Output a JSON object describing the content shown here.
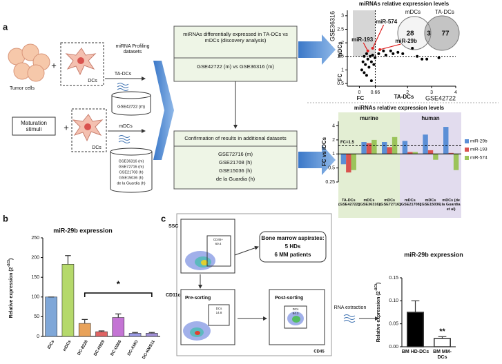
{
  "panel_labels": [
    "a",
    "b",
    "c"
  ],
  "discovery_diagram": {
    "tumor_cells": "Tumor cells",
    "plus_1": "+",
    "dcs_1": "DCs",
    "profiling": "miRNA Profiling datasets",
    "ta_dcs": "TA-DCs",
    "ta_dataset": "GSE42722 (m)",
    "maturation": "Maturation stimuli",
    "plus_2": "+",
    "dcs_2": "DCs",
    "mdcs": "mDCs",
    "m_datasets": [
      "GSE36316 (m)",
      "GSE72716 (m)",
      "GSE21708 (h)",
      "GSE15036 (h)",
      "de la Guardia (h)"
    ],
    "box1": {
      "title": "miRNAs differentially expressed in TA-DCs vs mDCs (discovery analysis)",
      "comparison": "GSE42722 (m) vs GSE36316 (m)"
    },
    "box2": {
      "title": "Confirmation of results in additional datasets",
      "datasets": [
        "GSE72716 (m)",
        "GSE21708 (h)",
        "GSE15036 (h)",
        "de la Guardia (h)"
      ]
    }
  },
  "sorting_diagram": {
    "ssc": "SSC",
    "gate1": "CD45+",
    "gate1_value": "60.4",
    "aspirates": "Bone marrow aspirates:",
    "hds": "5 HDs",
    "patients": "6 MM patients",
    "cd11c": "CD11c",
    "pre": "Pre-sorting",
    "gate2": "DCs",
    "gate2_value": "14.8",
    "post": "Post-sorting",
    "gate3": "DCs",
    "gate3_value": "84.3",
    "rna": "RNA extraction",
    "cd45": "CD45"
  },
  "chart_data": [
    {
      "type": "scatter",
      "title": "miRNAs relative expression levels",
      "x_label": "FC",
      "x_sublabel": "TA-DCs",
      "x_dataset": "GSE42722",
      "y_label": "FC",
      "y_sublabel": "mDCs",
      "y_dataset": "GSE36316",
      "xlim": [
        -0.5,
        4
      ],
      "ylim": [
        0.4,
        3.2
      ],
      "xticks": [
        0,
        0.66,
        2,
        3,
        4
      ],
      "yticks": [
        0.5,
        1,
        1.5,
        2,
        2.5,
        3
      ],
      "x_threshold": 0.66,
      "y_threshold": 1.5,
      "series": [
        {
          "color": "#000000",
          "x": [
            0.1,
            0.15,
            0.2,
            0.25,
            0.3,
            0.3,
            0.35,
            0.4,
            0.45,
            0.5,
            0.5,
            0.55,
            0.6,
            0.2,
            0.65,
            0.8,
            1.0,
            1.1,
            1.3,
            1.4,
            1.6,
            1.8,
            2.2,
            2.4,
            2.6,
            2.8,
            3.3
          ],
          "y": [
            1.0,
            1.3,
            1.5,
            1.2,
            0.8,
            1.6,
            1.4,
            1.1,
            1.5,
            1.3,
            0.6,
            1.55,
            1.2,
            0.9,
            1.45,
            1.6,
            1.7,
            1.55,
            1.7,
            1.6,
            1.65,
            1.6,
            1.8,
            1.5,
            1.4,
            1.4,
            1.45
          ]
        },
        {
          "color": "#e02020",
          "x": [
            0.35,
            0.55,
            0.85
          ],
          "y": [
            1.7,
            1.8,
            1.75
          ],
          "point_labels": [
            "miR-193",
            "miR-574",
            "miR-29b"
          ]
        }
      ],
      "venn": {
        "sets": [
          "mDCs",
          "TA-DCs"
        ],
        "values": [
          28,
          3,
          77
        ]
      }
    },
    {
      "type": "bar",
      "title": "miRNAs relative expression levels",
      "y_label": "FC vs iDCs",
      "log_scale": true,
      "ylim": [
        0.25,
        5
      ],
      "yticks": [
        0.25,
        0.5,
        1,
        2,
        4
      ],
      "baseline": 1,
      "threshold": 1.5,
      "threshold_label": "FC=1.5",
      "groups": [
        {
          "name": "murine",
          "color": "#e3eed3",
          "size": 3
        },
        {
          "name": "human",
          "color": "#e2dcee",
          "size": 3
        }
      ],
      "categories": [
        "TA-DCs (GSE42722)",
        "mDCs (GSE36316)",
        "mDCs (GSE72716)",
        "mDCs (GSE21708)",
        "mDCs (GSE15036)",
        "mDCs (de la Guardia et al)"
      ],
      "series": [
        {
          "name": "miR-29b",
          "color": "#5b8fd6",
          "values": [
            0.6,
            1.8,
            1.8,
            1.9,
            2.6,
            3.8
          ]
        },
        {
          "name": "miR-193",
          "color": "#d9534f",
          "values": [
            0.4,
            1.7,
            1.4,
            1.1,
            1.2,
            1.05
          ]
        },
        {
          "name": "miR-574",
          "color": "#9bc45a",
          "values": [
            0.45,
            2.0,
            2.3,
            1.1,
            0.75,
            0.45
          ]
        }
      ],
      "legend": "right"
    },
    {
      "type": "bar",
      "title": "miR-29b expression",
      "y_label": "Relative expression (2",
      "y_label_exp": "-ΔCt",
      "y_label_end": ")",
      "ylim": [
        0,
        250
      ],
      "yticks": [
        0,
        50,
        100,
        150,
        200,
        250
      ],
      "categories": [
        "iDCs",
        "mDCs",
        "DC-8226",
        "DC-H929",
        "DC-U266",
        "DC-AMO",
        "DC-KMS11"
      ],
      "values": [
        100,
        183,
        33,
        12,
        48,
        8,
        8
      ],
      "errors": [
        0,
        22,
        10,
        2,
        9,
        2,
        2
      ],
      "colors": [
        "#7fa7d8",
        "#b5d96b",
        "#e8a25a",
        "#e06464",
        "#c474d4",
        "#9a9ae6",
        "#a08fd6"
      ],
      "significance": {
        "label": "*",
        "from": 2,
        "to": 6
      }
    },
    {
      "type": "bar",
      "title": "miR-29b expression",
      "y_label": "Relative expression (2",
      "y_label_exp": "-ΔCt",
      "y_label_end": ")",
      "ylim": [
        0,
        0.15
      ],
      "yticks": [
        {
          "value": 0,
          "label": "0.00"
        },
        {
          "value": 0.05,
          "label": "0.05"
        },
        {
          "value": 0.1,
          "label": "0.10"
        },
        {
          "value": 0.15,
          "label": "0.15"
        }
      ],
      "categories": [
        "BM HD-DCs",
        "BM MM-DCs"
      ],
      "values": [
        0.075,
        0.018
      ],
      "errors": [
        0.025,
        0.004
      ],
      "colors": [
        "#000000",
        "#ffffff"
      ],
      "significance": {
        "label": "**",
        "bar": 1
      }
    }
  ]
}
